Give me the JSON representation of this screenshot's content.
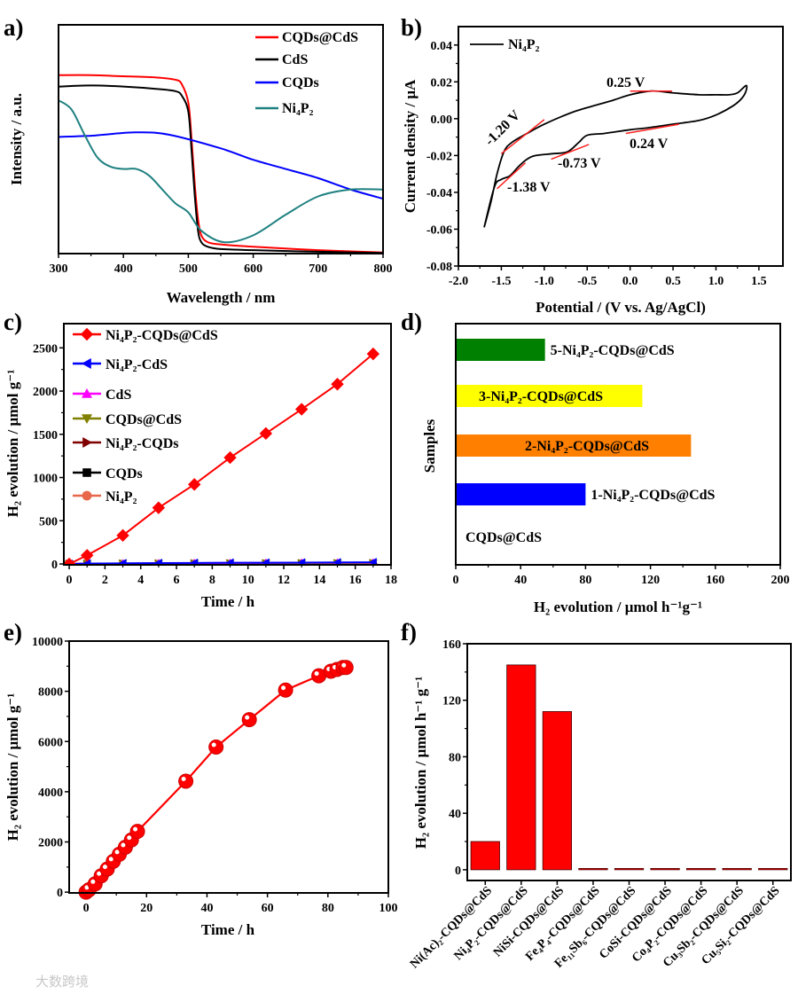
{
  "figure_labels": [
    "a)",
    "b)",
    "c)",
    "d)",
    "e)",
    "f)"
  ],
  "watermark": "大数跨境",
  "chart_data": [
    {
      "panel": "a",
      "type": "line",
      "xlabel": "Wavelength / nm",
      "ylabel": "Intensity / a.u.",
      "xlim": [
        300,
        800
      ],
      "xticks": [
        300,
        400,
        500,
        600,
        700,
        800
      ],
      "xticklabels": [
        "300",
        "400",
        "500",
        "600",
        "700",
        "800"
      ],
      "ylim": [
        0,
        1
      ],
      "legend_position": "top-right",
      "series": [
        {
          "name": "CQDs@CdS",
          "color": "#ff0000",
          "x": [
            300,
            350,
            400,
            450,
            480,
            490,
            500,
            505,
            510,
            515,
            520,
            530,
            550,
            600,
            700,
            800
          ],
          "y": [
            0.78,
            0.78,
            0.775,
            0.77,
            0.76,
            0.74,
            0.66,
            0.5,
            0.3,
            0.15,
            0.08,
            0.05,
            0.04,
            0.03,
            0.015,
            0.005
          ]
        },
        {
          "name": "CdS",
          "color": "#000000",
          "x": [
            300,
            350,
            400,
            450,
            480,
            490,
            500,
            505,
            510,
            515,
            520,
            530,
            550,
            600,
            700,
            800
          ],
          "y": [
            0.73,
            0.735,
            0.73,
            0.72,
            0.71,
            0.69,
            0.62,
            0.45,
            0.25,
            0.1,
            0.05,
            0.03,
            0.02,
            0.015,
            0.008,
            0.003
          ]
        },
        {
          "name": "CQDs",
          "color": "#0000ff",
          "x": [
            300,
            350,
            370,
            420,
            470,
            550,
            600,
            650,
            700,
            750,
            800
          ],
          "y": [
            0.51,
            0.515,
            0.52,
            0.53,
            0.52,
            0.46,
            0.41,
            0.37,
            0.33,
            0.28,
            0.24
          ]
        },
        {
          "name": "Ni₄P₂",
          "color": "#1f8080",
          "x": [
            300,
            320,
            340,
            360,
            380,
            400,
            420,
            440,
            460,
            480,
            500,
            520,
            555,
            600,
            650,
            700,
            750,
            800
          ],
          "y": [
            0.67,
            0.63,
            0.52,
            0.42,
            0.38,
            0.37,
            0.37,
            0.34,
            0.28,
            0.22,
            0.18,
            0.1,
            0.05,
            0.08,
            0.17,
            0.25,
            0.28,
            0.28
          ]
        }
      ]
    },
    {
      "panel": "b",
      "type": "line",
      "xlabel": "Potential / (V vs. Ag/AgCl)",
      "ylabel": "Current density / μA",
      "xlim": [
        -2.0,
        1.78
      ],
      "xticks": [
        -2.0,
        -1.5,
        -1.0,
        -0.5,
        0.0,
        0.5,
        1.0,
        1.5
      ],
      "xticklabels": [
        "-2.0",
        "-1.5",
        "-1.0",
        "-0.5",
        "0.0",
        "0.5",
        "1.0",
        "1.5"
      ],
      "ylim": [
        -0.08,
        0.05
      ],
      "yticks": [
        -0.08,
        -0.06,
        -0.04,
        -0.02,
        0.0,
        0.02,
        0.04
      ],
      "yticklabels": [
        "-0.08",
        "-0.06",
        "-0.04",
        "-0.02",
        "0.00",
        "0.02",
        "0.04"
      ],
      "legend_position": "top-left",
      "series": [
        {
          "name": "Ni₄P₂",
          "color": "#000000",
          "x": [
            -1.7,
            -1.62,
            -1.55,
            -1.47,
            -1.38,
            -1.2,
            -1.0,
            -0.7,
            -0.5,
            -0.2,
            0.0,
            0.25,
            0.5,
            0.8,
            1.0,
            1.15,
            1.25,
            1.35,
            1.35,
            1.3,
            1.2,
            1.0,
            0.8,
            0.5,
            0.2,
            0.0,
            -0.3,
            -0.5,
            -0.6,
            -0.73,
            -0.9,
            -1.1,
            -1.2,
            -1.3,
            -1.4,
            -1.5,
            -1.58,
            -1.7
          ],
          "y": [
            -0.059,
            -0.045,
            -0.03,
            -0.018,
            -0.013,
            -0.008,
            -0.003,
            0.003,
            0.006,
            0.01,
            0.013,
            0.015,
            0.014,
            0.013,
            0.013,
            0.013,
            0.014,
            0.018,
            0.015,
            0.011,
            0.007,
            0.002,
            -0.001,
            -0.003,
            -0.005,
            -0.006,
            -0.008,
            -0.009,
            -0.013,
            -0.018,
            -0.019,
            -0.02,
            -0.022,
            -0.026,
            -0.031,
            -0.033,
            -0.037,
            -0.059
          ]
        }
      ],
      "annotations": [
        "-1.20 V",
        "-1.38 V",
        "-0.73 V",
        "0.25 V",
        "0.24 V"
      ]
    },
    {
      "panel": "c",
      "type": "line",
      "xlabel": "Time / h",
      "ylabel": "H₂ evolution / μmol g⁻¹",
      "xlim": [
        -0.3,
        18
      ],
      "xticks": [
        0,
        2,
        4,
        6,
        8,
        10,
        12,
        14,
        16,
        18
      ],
      "xticklabels": [
        "0",
        "2",
        "4",
        "6",
        "8",
        "10",
        "12",
        "14",
        "16",
        "18"
      ],
      "ylim": [
        -10,
        2780
      ],
      "yticks": [
        0,
        500,
        1000,
        1500,
        2000,
        2500
      ],
      "yticklabels": [
        "0",
        "500",
        "1000",
        "1500",
        "2000",
        "2500"
      ],
      "legend_position": "top-left",
      "x": [
        0,
        1,
        3,
        5,
        7,
        9,
        11,
        13,
        15,
        17
      ],
      "series": [
        {
          "name": "Ni₄P₂-CQDs@CdS",
          "color": "#ff0000",
          "marker": "diamond",
          "values": [
            0,
            100,
            330,
            650,
            920,
            1230,
            1510,
            1790,
            2080,
            2430
          ]
        },
        {
          "name": "Ni₄P₂-CdS",
          "color": "#0000ff",
          "marker": "triangle-left",
          "values": [
            0,
            5,
            8,
            10,
            12,
            14,
            15,
            16,
            18,
            20
          ]
        },
        {
          "name": "CdS",
          "color": "#ff00ff",
          "marker": "triangle-up",
          "values": [
            0,
            4,
            6,
            8,
            10,
            12,
            13,
            14,
            15,
            16
          ]
        },
        {
          "name": "CQDs@CdS",
          "color": "#808000",
          "marker": "triangle-down",
          "values": [
            0,
            3,
            5,
            6,
            7,
            8,
            9,
            10,
            10,
            11
          ]
        },
        {
          "name": "Ni₄P₂-CQDs",
          "color": "#800000",
          "marker": "triangle-right",
          "values": [
            0,
            2,
            3,
            4,
            5,
            6,
            6,
            7,
            7,
            8
          ]
        },
        {
          "name": "CQDs",
          "color": "#000000",
          "marker": "square",
          "values": [
            0,
            1,
            1,
            2,
            2,
            2,
            3,
            3,
            3,
            3
          ]
        },
        {
          "name": "Ni₄P₂",
          "color": "#e8674a",
          "marker": "circle",
          "values": [
            0,
            1,
            1,
            1,
            2,
            2,
            2,
            2,
            2,
            2
          ]
        }
      ]
    },
    {
      "panel": "d",
      "type": "bar",
      "orientation": "horizontal",
      "xlabel": "H₂ evolution / μmol h⁻¹g⁻¹",
      "ylabel": "Samples",
      "xlim": [
        0,
        200
      ],
      "xticks": [
        0,
        40,
        80,
        120,
        160,
        200
      ],
      "xticklabels": [
        "0",
        "40",
        "80",
        "120",
        "160",
        "200"
      ],
      "categories": [
        "CQDs@CdS",
        "1-Ni₄P₂-CQDs@CdS",
        "2-Ni₄P₂-CQDs@CdS",
        "3-Ni₄P₂-CQDs@CdS",
        "5-Ni₄P₂-CQDs@CdS"
      ],
      "values": [
        0,
        80,
        145,
        115,
        55
      ],
      "colors": [
        "#ffffff",
        "#0000ff",
        "#ff8000",
        "#ffff00",
        "#008000"
      ]
    },
    {
      "panel": "e",
      "type": "line",
      "xlabel": "Time / h",
      "ylabel": "H₂ evolution / μmol g⁻¹",
      "xlim": [
        -5.6,
        100
      ],
      "xticks": [
        0,
        20,
        40,
        60,
        80,
        100
      ],
      "xticklabels": [
        "0",
        "20",
        "40",
        "60",
        "80",
        "100"
      ],
      "ylim": [
        -30,
        10000
      ],
      "yticks": [
        0,
        2000,
        4000,
        6000,
        8000,
        10000
      ],
      "yticklabels": [
        "0",
        "2000",
        "4000",
        "6000",
        "8000",
        "10000"
      ],
      "series": [
        {
          "name": "H₂ evolution",
          "color": "#ff0000",
          "marker": "circle",
          "x": [
            0,
            1,
            3,
            5,
            7,
            9,
            11,
            13,
            15,
            17,
            33,
            43,
            54,
            66,
            77,
            81,
            83,
            85,
            86
          ],
          "y": [
            0,
            100,
            330,
            650,
            920,
            1230,
            1510,
            1790,
            2080,
            2420,
            4420,
            5780,
            6870,
            8050,
            8620,
            8800,
            8870,
            8950,
            8950
          ]
        }
      ]
    },
    {
      "panel": "f",
      "type": "bar",
      "xlabel": "",
      "ylabel": "H₂ evolution / μmol h⁻¹ g⁻¹",
      "ylim": [
        -7.6,
        160
      ],
      "yticks": [
        0,
        40,
        80,
        120,
        160
      ],
      "yticklabels": [
        "0",
        "40",
        "80",
        "120",
        "160"
      ],
      "categories": [
        "Ni(Ac)₂-CQDs@CdS",
        "Ni₄P₂-CQDs@CdS",
        "NiSi-CQDs@CdS",
        "Fe₄P₄-CQDs@CdS",
        "Fe₁₁Sb₆-CQDs@CdS",
        "CoSi-CQDs@CdS",
        "Co₄P₂-CQDs@CdS",
        "Cu₃Sb₂-CQDs@CdS",
        "Cu₅Si₂-CQDs@CdS"
      ],
      "values": [
        20,
        145,
        112,
        0,
        0,
        0,
        0,
        0,
        0
      ],
      "color": "#ff0000"
    }
  ]
}
